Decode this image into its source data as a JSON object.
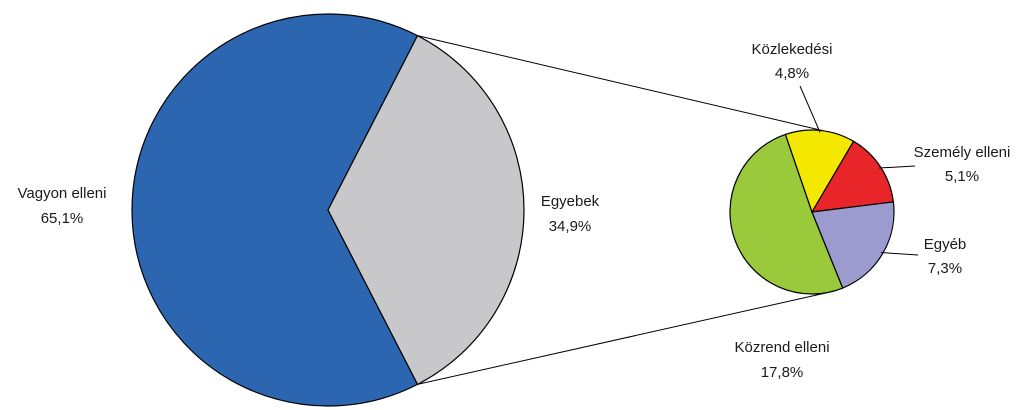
{
  "chart_data": {
    "type": "pie",
    "main": {
      "slices": [
        {
          "label": "Vagyon elleni",
          "value_text": "65,1%",
          "value": 65.1,
          "color": "#2c66b0"
        },
        {
          "label": "Egyebek",
          "value_text": "34,9%",
          "value": 34.9,
          "color": "#c8c8ca"
        }
      ]
    },
    "breakdown": {
      "of": "Egyebek",
      "slices": [
        {
          "label": "Közlekedési",
          "value_text": "4,8%",
          "value": 4.8,
          "color": "#f5e800"
        },
        {
          "label": "Személy elleni",
          "value_text": "5,1%",
          "value": 5.1,
          "color": "#e8262a"
        },
        {
          "label": "Egyéb",
          "value_text": "7,3%",
          "value": 7.3,
          "color": "#9b9bd0"
        },
        {
          "label": "Közrend elleni",
          "value_text": "17,8%",
          "value": 17.8,
          "color": "#9ac93c"
        }
      ]
    }
  }
}
